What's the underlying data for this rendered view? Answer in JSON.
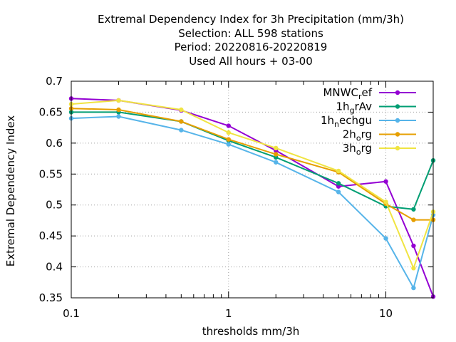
{
  "chart_data": {
    "type": "line",
    "title_lines": [
      "Extremal Dependency Index  for 3h Precipitation (mm/3h)",
      "Selection: ALL    598 stations",
      "Period: 20220816-20220819",
      "Used  All hours  + 03-00"
    ],
    "xlabel": "thresholds mm/3h",
    "ylabel": "Extremal Dependency Index",
    "xscale": "log",
    "xlim": [
      0.1,
      20
    ],
    "ylim": [
      0.35,
      0.7
    ],
    "x_ticks": [
      {
        "value": 0.1,
        "label": "0.1"
      },
      {
        "value": 1,
        "label": "1"
      },
      {
        "value": 10,
        "label": "10"
      }
    ],
    "y_ticks": [
      {
        "value": 0.35,
        "label": "0.35"
      },
      {
        "value": 0.4,
        "label": "0.4"
      },
      {
        "value": 0.45,
        "label": "0.45"
      },
      {
        "value": 0.5,
        "label": "0.5"
      },
      {
        "value": 0.55,
        "label": "0.55"
      },
      {
        "value": 0.6,
        "label": "0.6"
      },
      {
        "value": 0.65,
        "label": "0.65"
      },
      {
        "value": 0.7,
        "label": "0.7"
      }
    ],
    "grid": true,
    "legend_position": "top-right",
    "x": [
      0.1,
      0.2,
      0.5,
      1,
      2,
      5,
      10,
      15,
      20
    ],
    "series": [
      {
        "name": "MNWC",
        "name_sub": "r",
        "name_rest": "ef",
        "color": "#9400d3",
        "values": [
          0.672,
          0.669,
          0.653,
          0.628,
          0.588,
          0.53,
          0.538,
          0.434,
          0.352
        ]
      },
      {
        "name": "1h",
        "name_sub": "g",
        "name_rest": "rAv",
        "color": "#009e73",
        "values": [
          0.65,
          0.65,
          0.635,
          0.604,
          0.577,
          0.535,
          0.498,
          0.493,
          0.572
        ]
      },
      {
        "name": "1h",
        "name_sub": "n",
        "name_rest": "echgu",
        "color": "#56b4e9",
        "values": [
          0.64,
          0.643,
          0.621,
          0.598,
          0.569,
          0.521,
          0.446,
          0.366,
          0.484
        ]
      },
      {
        "name": "2h",
        "name_sub": "o",
        "name_rest": "rg",
        "color": "#e69f00",
        "values": [
          0.656,
          0.654,
          0.635,
          0.606,
          0.582,
          0.553,
          0.502,
          0.476,
          0.476
        ]
      },
      {
        "name": "3h",
        "name_sub": "o",
        "name_rest": "rg",
        "color": "#f0e442",
        "values": [
          0.663,
          0.669,
          0.654,
          0.617,
          0.592,
          0.555,
          0.505,
          0.398,
          0.489
        ]
      }
    ]
  }
}
